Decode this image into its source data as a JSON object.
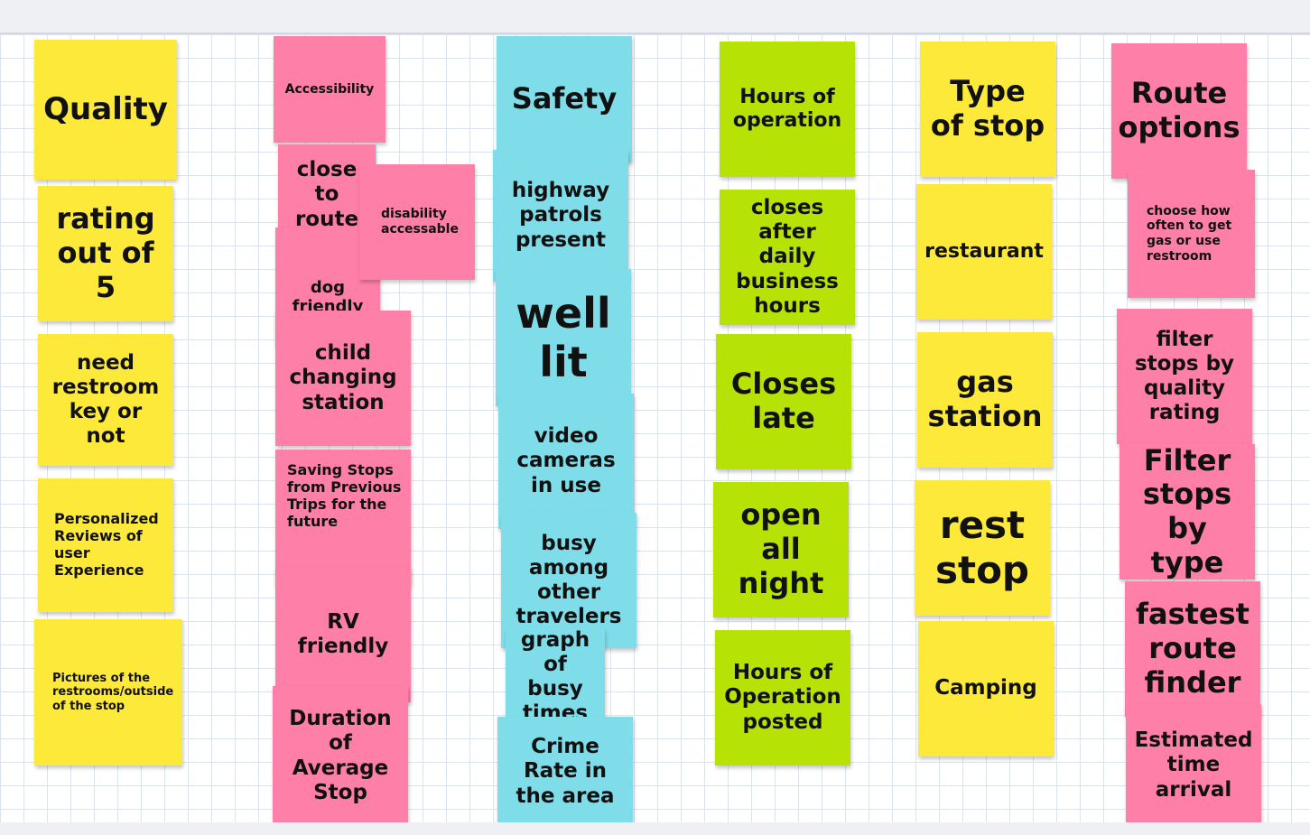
{
  "colors": {
    "yellow": "#fce93a",
    "pink": "#fe7fa7",
    "cyan": "#7fdde9",
    "green": "#b6e305"
  },
  "columns": [
    {
      "color": "yellow",
      "notes": [
        "Quality",
        "rating out of 5",
        "need restroom key or not",
        "Personalized Reviews of user Experience",
        "Pictures of the restrooms/outside of the stop"
      ]
    },
    {
      "color": "pink",
      "notes": [
        "Accessibility",
        "close to route",
        "disability accessable",
        "dog friendly",
        "child changing station",
        "Saving Stops from Previous Trips for the future",
        "RV friendly",
        "Duration of Average Stop"
      ]
    },
    {
      "color": "cyan",
      "notes": [
        "Safety",
        "highway patrols present",
        "well lit",
        "video cameras in use",
        "busy among other travelers",
        "graph of busy times",
        "Crime Rate in the area"
      ]
    },
    {
      "color": "green",
      "notes": [
        "Hours of operation",
        "closes after daily business hours",
        "Closes late",
        "open all night",
        "Hours of Operation posted"
      ]
    },
    {
      "color": "yellow",
      "notes": [
        "Type of stop",
        "restaurant",
        "gas station",
        "rest stop",
        "Camping"
      ]
    },
    {
      "color": "pink",
      "notes": [
        "Route options",
        "choose how often to get gas or use restroom",
        "filter stops by quality rating",
        "Filter stops by type",
        "fastest route finder",
        "Estimated time arrival"
      ]
    }
  ]
}
